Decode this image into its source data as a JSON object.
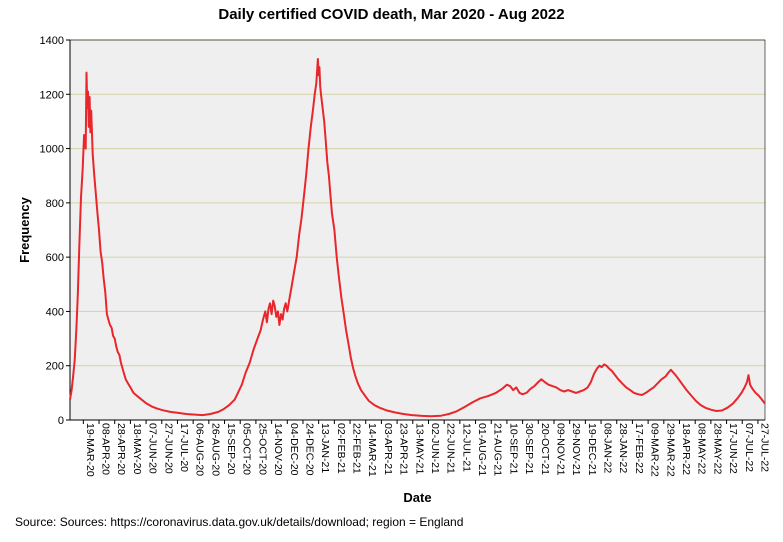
{
  "chart_data": {
    "type": "line",
    "title": "Daily certified COVID death, Mar 2020 - Aug 2022",
    "xlabel": "Date",
    "ylabel": "Frequency",
    "source": "Source: Sources: https://coronavirus.data.gov.uk/details/download; region = England",
    "ylim": [
      0,
      1400
    ],
    "yticks": [
      0,
      200,
      400,
      600,
      800,
      1000,
      1200,
      1400
    ],
    "x_start": "2020-03-02",
    "x_end": "2022-08-05",
    "xticks": [
      "19-MAR-20",
      "08-APR-20",
      "28-APR-20",
      "18-MAY-20",
      "07-JUN-20",
      "27-JUN-20",
      "17-JUL-20",
      "06-AUG-20",
      "26-AUG-20",
      "15-SEP-20",
      "05-OCT-20",
      "25-OCT-20",
      "14-NOV-20",
      "04-DEC-20",
      "24-DEC-20",
      "13-JAN-21",
      "02-FEB-21",
      "22-FEB-21",
      "14-MAR-21",
      "03-APR-21",
      "23-APR-21",
      "13-MAY-21",
      "02-JUN-21",
      "22-JUN-21",
      "12-JUL-21",
      "01-AUG-21",
      "21-AUG-21",
      "10-SEP-21",
      "30-SEP-21",
      "20-OCT-21",
      "09-NOV-21",
      "29-NOV-21",
      "19-DEC-21",
      "08-JAN-22",
      "28-JAN-22",
      "17-FEB-22",
      "09-MAR-22",
      "29-MAR-22",
      "18-APR-22",
      "08-MAY-22",
      "28-MAY-22",
      "17-JUN-22",
      "07-JUL-22",
      "27-JUL-22"
    ],
    "grid": true,
    "line_color": "#e8262b",
    "background": "#efefef",
    "gridline_color": "#d6d2a6",
    "series": [
      {
        "points": [
          [
            "2020-03-02",
            75
          ],
          [
            "2020-03-04",
            110
          ],
          [
            "2020-03-06",
            160
          ],
          [
            "2020-03-08",
            220
          ],
          [
            "2020-03-10",
            330
          ],
          [
            "2020-03-12",
            460
          ],
          [
            "2020-03-14",
            650
          ],
          [
            "2020-03-16",
            820
          ],
          [
            "2020-03-18",
            920
          ],
          [
            "2020-03-20",
            1050
          ],
          [
            "2020-03-22",
            1000
          ],
          [
            "2020-03-23",
            1280
          ],
          [
            "2020-03-24",
            1150
          ],
          [
            "2020-03-25",
            1210
          ],
          [
            "2020-03-26",
            1080
          ],
          [
            "2020-03-27",
            1190
          ],
          [
            "2020-03-28",
            1060
          ],
          [
            "2020-03-29",
            1140
          ],
          [
            "2020-03-31",
            980
          ],
          [
            "2020-04-02",
            900
          ],
          [
            "2020-04-04",
            830
          ],
          [
            "2020-04-06",
            760
          ],
          [
            "2020-04-08",
            700
          ],
          [
            "2020-04-10",
            620
          ],
          [
            "2020-04-12",
            580
          ],
          [
            "2020-04-14",
            520
          ],
          [
            "2020-04-16",
            470
          ],
          [
            "2020-04-18",
            390
          ],
          [
            "2020-04-20",
            370
          ],
          [
            "2020-04-22",
            350
          ],
          [
            "2020-04-24",
            340
          ],
          [
            "2020-04-26",
            310
          ],
          [
            "2020-04-28",
            300
          ],
          [
            "2020-04-30",
            270
          ],
          [
            "2020-05-02",
            250
          ],
          [
            "2020-05-04",
            240
          ],
          [
            "2020-05-06",
            210
          ],
          [
            "2020-05-09",
            180
          ],
          [
            "2020-05-12",
            150
          ],
          [
            "2020-05-15",
            135
          ],
          [
            "2020-05-18",
            120
          ],
          [
            "2020-05-22",
            100
          ],
          [
            "2020-05-26",
            90
          ],
          [
            "2020-05-31",
            78
          ],
          [
            "2020-06-07",
            62
          ],
          [
            "2020-06-14",
            50
          ],
          [
            "2020-06-21",
            42
          ],
          [
            "2020-06-28",
            36
          ],
          [
            "2020-07-08",
            30
          ],
          [
            "2020-07-18",
            26
          ],
          [
            "2020-07-28",
            22
          ],
          [
            "2020-08-08",
            20
          ],
          [
            "2020-08-18",
            18
          ],
          [
            "2020-08-28",
            22
          ],
          [
            "2020-09-07",
            30
          ],
          [
            "2020-09-14",
            40
          ],
          [
            "2020-09-21",
            55
          ],
          [
            "2020-09-28",
            75
          ],
          [
            "2020-10-02",
            100
          ],
          [
            "2020-10-07",
            130
          ],
          [
            "2020-10-12",
            175
          ],
          [
            "2020-10-17",
            210
          ],
          [
            "2020-10-22",
            260
          ],
          [
            "2020-10-27",
            300
          ],
          [
            "2020-10-31",
            330
          ],
          [
            "2020-11-03",
            370
          ],
          [
            "2020-11-06",
            400
          ],
          [
            "2020-11-08",
            360
          ],
          [
            "2020-11-10",
            410
          ],
          [
            "2020-11-12",
            430
          ],
          [
            "2020-11-14",
            390
          ],
          [
            "2020-11-16",
            440
          ],
          [
            "2020-11-18",
            420
          ],
          [
            "2020-11-20",
            380
          ],
          [
            "2020-11-22",
            400
          ],
          [
            "2020-11-24",
            350
          ],
          [
            "2020-11-26",
            390
          ],
          [
            "2020-11-28",
            370
          ],
          [
            "2020-11-30",
            410
          ],
          [
            "2020-12-02",
            430
          ],
          [
            "2020-12-04",
            400
          ],
          [
            "2020-12-07",
            450
          ],
          [
            "2020-12-10",
            500
          ],
          [
            "2020-12-13",
            550
          ],
          [
            "2020-12-16",
            600
          ],
          [
            "2020-12-19",
            680
          ],
          [
            "2020-12-22",
            740
          ],
          [
            "2020-12-25",
            820
          ],
          [
            "2020-12-28",
            900
          ],
          [
            "2020-12-31",
            1000
          ],
          [
            "2021-01-03",
            1080
          ],
          [
            "2021-01-06",
            1150
          ],
          [
            "2021-01-08",
            1200
          ],
          [
            "2021-01-10",
            1240
          ],
          [
            "2021-01-12",
            1330
          ],
          [
            "2021-01-13",
            1270
          ],
          [
            "2021-01-14",
            1300
          ],
          [
            "2021-01-15",
            1230
          ],
          [
            "2021-01-16",
            1200
          ],
          [
            "2021-01-18",
            1150
          ],
          [
            "2021-01-20",
            1100
          ],
          [
            "2021-01-22",
            1030
          ],
          [
            "2021-01-24",
            950
          ],
          [
            "2021-01-26",
            900
          ],
          [
            "2021-01-28",
            830
          ],
          [
            "2021-01-30",
            760
          ],
          [
            "2021-02-02",
            700
          ],
          [
            "2021-02-05",
            600
          ],
          [
            "2021-02-08",
            520
          ],
          [
            "2021-02-11",
            450
          ],
          [
            "2021-02-14",
            390
          ],
          [
            "2021-02-17",
            330
          ],
          [
            "2021-02-20",
            280
          ],
          [
            "2021-02-23",
            230
          ],
          [
            "2021-02-26",
            190
          ],
          [
            "2021-03-01",
            160
          ],
          [
            "2021-03-04",
            135
          ],
          [
            "2021-03-08",
            110
          ],
          [
            "2021-03-13",
            90
          ],
          [
            "2021-03-18",
            70
          ],
          [
            "2021-03-25",
            55
          ],
          [
            "2021-04-01",
            45
          ],
          [
            "2021-04-10",
            35
          ],
          [
            "2021-04-20",
            28
          ],
          [
            "2021-05-01",
            22
          ],
          [
            "2021-05-12",
            18
          ],
          [
            "2021-05-25",
            15
          ],
          [
            "2021-06-05",
            14
          ],
          [
            "2021-06-18",
            16
          ],
          [
            "2021-06-28",
            22
          ],
          [
            "2021-07-08",
            32
          ],
          [
            "2021-07-18",
            48
          ],
          [
            "2021-07-28",
            65
          ],
          [
            "2021-08-07",
            80
          ],
          [
            "2021-08-17",
            88
          ],
          [
            "2021-08-27",
            100
          ],
          [
            "2021-09-04",
            115
          ],
          [
            "2021-09-10",
            130
          ],
          [
            "2021-09-14",
            125
          ],
          [
            "2021-09-18",
            110
          ],
          [
            "2021-09-22",
            120
          ],
          [
            "2021-09-26",
            100
          ],
          [
            "2021-09-30",
            95
          ],
          [
            "2021-10-05",
            100
          ],
          [
            "2021-10-10",
            115
          ],
          [
            "2021-10-15",
            125
          ],
          [
            "2021-10-20",
            140
          ],
          [
            "2021-10-24",
            150
          ],
          [
            "2021-10-28",
            140
          ],
          [
            "2021-11-02",
            130
          ],
          [
            "2021-11-07",
            125
          ],
          [
            "2021-11-12",
            120
          ],
          [
            "2021-11-17",
            110
          ],
          [
            "2021-11-22",
            105
          ],
          [
            "2021-11-27",
            110
          ],
          [
            "2021-12-02",
            105
          ],
          [
            "2021-12-07",
            100
          ],
          [
            "2021-12-12",
            105
          ],
          [
            "2021-12-17",
            110
          ],
          [
            "2021-12-22",
            120
          ],
          [
            "2021-12-26",
            140
          ],
          [
            "2021-12-30",
            170
          ],
          [
            "2022-01-03",
            190
          ],
          [
            "2022-01-06",
            200
          ],
          [
            "2022-01-09",
            195
          ],
          [
            "2022-01-12",
            205
          ],
          [
            "2022-01-15",
            200
          ],
          [
            "2022-01-18",
            190
          ],
          [
            "2022-01-22",
            180
          ],
          [
            "2022-01-26",
            165
          ],
          [
            "2022-01-30",
            150
          ],
          [
            "2022-02-04",
            135
          ],
          [
            "2022-02-09",
            120
          ],
          [
            "2022-02-14",
            110
          ],
          [
            "2022-02-19",
            100
          ],
          [
            "2022-02-24",
            95
          ],
          [
            "2022-03-01",
            92
          ],
          [
            "2022-03-06",
            100
          ],
          [
            "2022-03-11",
            110
          ],
          [
            "2022-03-16",
            120
          ],
          [
            "2022-03-21",
            135
          ],
          [
            "2022-03-26",
            150
          ],
          [
            "2022-03-31",
            160
          ],
          [
            "2022-04-04",
            175
          ],
          [
            "2022-04-07",
            185
          ],
          [
            "2022-04-10",
            175
          ],
          [
            "2022-04-13",
            165
          ],
          [
            "2022-04-17",
            150
          ],
          [
            "2022-04-22",
            130
          ],
          [
            "2022-04-27",
            110
          ],
          [
            "2022-05-03",
            90
          ],
          [
            "2022-05-09",
            70
          ],
          [
            "2022-05-15",
            55
          ],
          [
            "2022-05-21",
            45
          ],
          [
            "2022-05-28",
            38
          ],
          [
            "2022-06-04",
            33
          ],
          [
            "2022-06-11",
            35
          ],
          [
            "2022-06-18",
            45
          ],
          [
            "2022-06-25",
            60
          ],
          [
            "2022-07-01",
            80
          ],
          [
            "2022-07-06",
            100
          ],
          [
            "2022-07-10",
            120
          ],
          [
            "2022-07-13",
            140
          ],
          [
            "2022-07-15",
            165
          ],
          [
            "2022-07-17",
            130
          ],
          [
            "2022-07-20",
            115
          ],
          [
            "2022-07-24",
            100
          ],
          [
            "2022-07-28",
            90
          ],
          [
            "2022-08-01",
            75
          ],
          [
            "2022-08-05",
            60
          ]
        ]
      }
    ]
  }
}
